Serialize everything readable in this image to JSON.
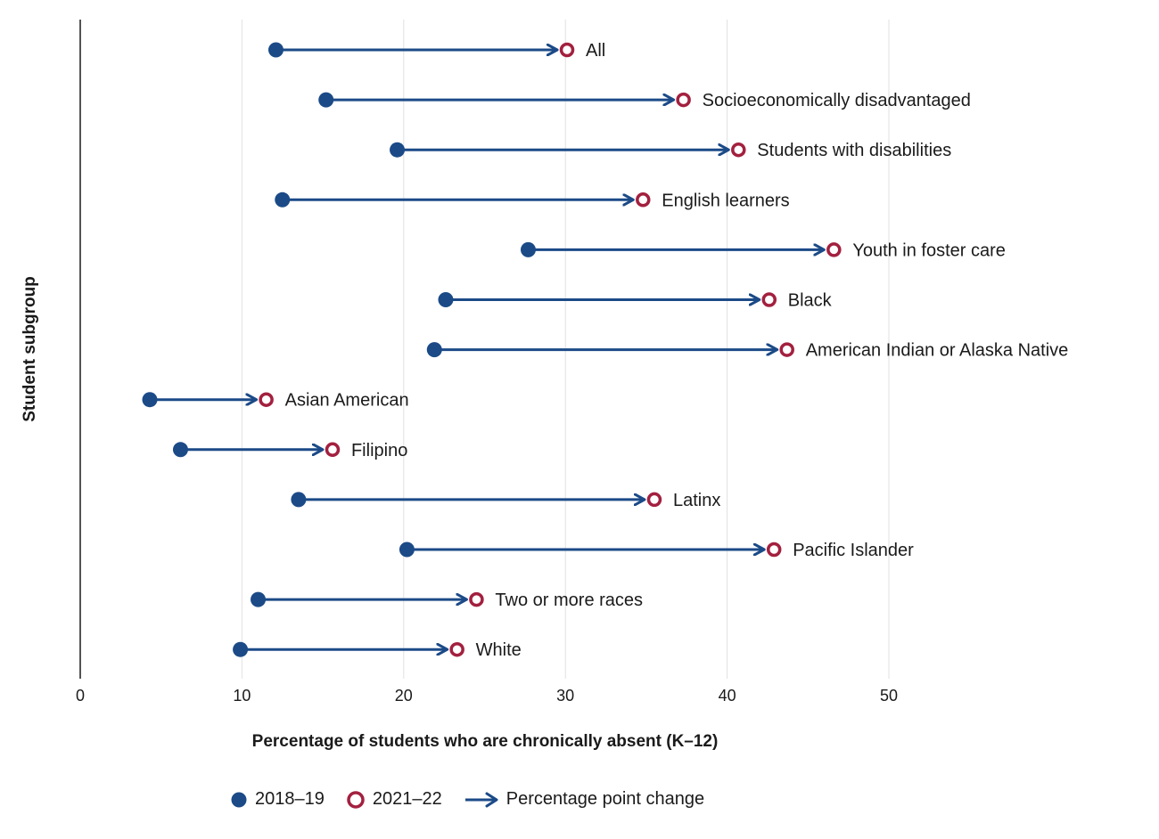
{
  "chart_data": {
    "type": "dumbbell",
    "xlabel": "Percentage of students who are chronically absent (K–12)",
    "ylabel": "Student subgroup",
    "xlim": [
      0,
      55
    ],
    "xticks": [
      0,
      10,
      20,
      30,
      40,
      50
    ],
    "grid": "vertical",
    "colors": {
      "y2018": "#1b4a87",
      "y2021": "#a3203f",
      "arrow": "#1b4a87",
      "grid": "#e2e2e2"
    },
    "series_names": [
      "2018–19",
      "2021–22"
    ],
    "categories": [
      "All",
      "Socioeconomically disadvantaged",
      "Students with disabilities",
      "English learners",
      "Youth in foster care",
      "Black",
      "American Indian or Alaska Native",
      "Asian American",
      "Filipino",
      "Latinx",
      "Pacific Islander",
      "Two or more races",
      "White"
    ],
    "series": [
      {
        "name": "2018–19",
        "values": [
          12.1,
          15.2,
          19.6,
          12.5,
          27.7,
          22.6,
          21.9,
          4.3,
          6.2,
          13.5,
          20.2,
          11.0,
          9.9
        ]
      },
      {
        "name": "2021–22",
        "values": [
          30.1,
          37.3,
          40.7,
          34.8,
          46.6,
          42.6,
          43.7,
          11.5,
          15.6,
          35.5,
          42.9,
          24.5,
          23.3
        ]
      }
    ],
    "legend": {
      "items": [
        "2018–19",
        "2021–22",
        "Percentage point change"
      ],
      "position": "bottom"
    }
  }
}
